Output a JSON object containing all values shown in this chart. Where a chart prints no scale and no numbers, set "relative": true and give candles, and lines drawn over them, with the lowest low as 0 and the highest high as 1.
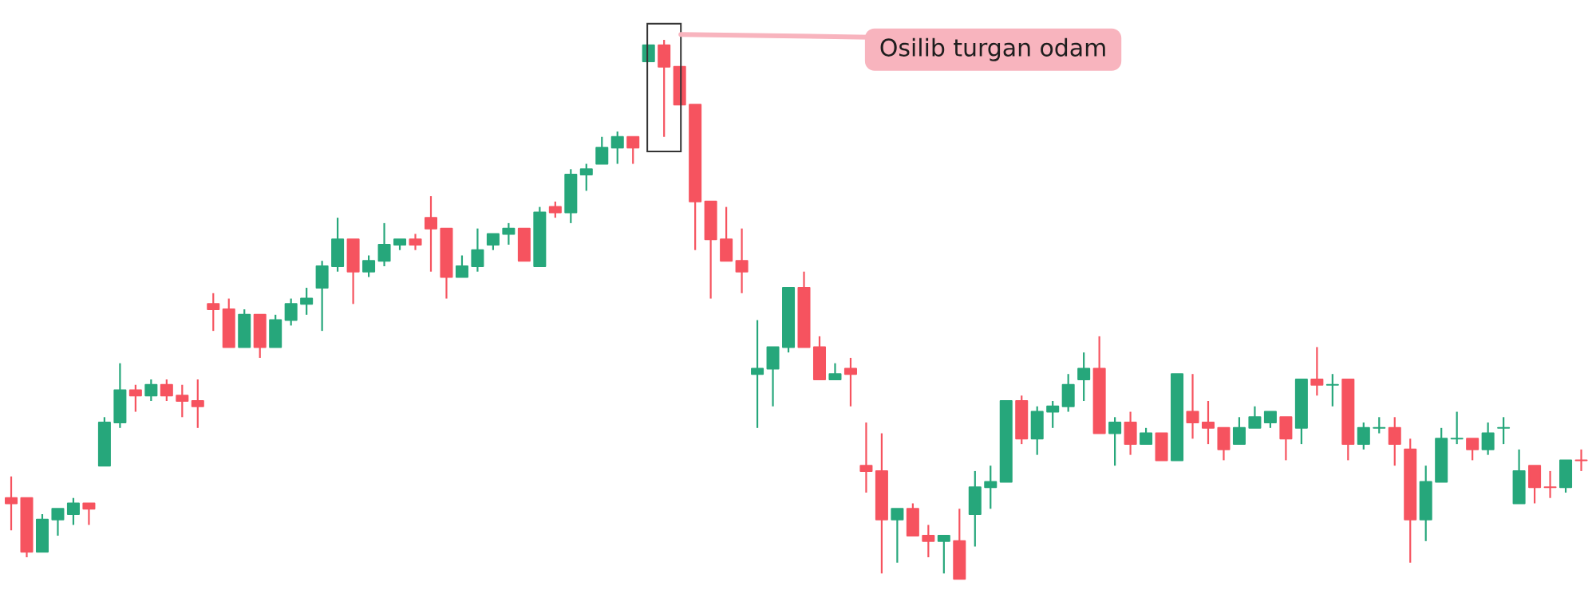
{
  "chart_data": {
    "type": "candlestick",
    "relative": true,
    "categories": [
      null,
      null,
      null,
      null,
      null,
      null,
      null,
      null,
      null,
      null,
      null,
      null,
      null,
      null,
      null,
      null,
      null,
      null,
      null,
      null,
      null,
      null,
      null,
      null,
      null,
      null,
      null,
      null,
      null,
      null,
      null,
      null,
      null,
      null,
      null,
      null,
      null,
      null,
      null,
      null,
      null,
      null,
      null,
      null,
      null,
      null,
      null,
      null,
      null,
      null,
      null,
      null,
      null,
      null,
      null,
      null,
      null,
      null,
      null,
      null,
      null,
      null,
      null,
      null,
      null,
      null,
      null,
      null,
      null,
      null,
      null,
      null,
      null,
      null,
      null,
      null,
      null,
      null,
      null,
      null,
      null,
      null,
      null,
      null,
      null,
      null,
      null,
      null,
      null,
      null,
      null,
      null,
      null,
      null,
      null,
      null,
      null,
      null,
      null,
      null,
      null,
      null
    ],
    "ohlc": [
      [
        0.15,
        0.19,
        0.09,
        0.14
      ],
      [
        0.15,
        0.15,
        0.04,
        0.05
      ],
      [
        0.05,
        0.12,
        0.05,
        0.11
      ],
      [
        0.11,
        0.13,
        0.08,
        0.13
      ],
      [
        0.12,
        0.15,
        0.1,
        0.14
      ],
      [
        0.14,
        0.14,
        0.1,
        0.13
      ],
      [
        0.21,
        0.3,
        0.21,
        0.29
      ],
      [
        0.29,
        0.4,
        0.28,
        0.35
      ],
      [
        0.35,
        0.36,
        0.31,
        0.34
      ],
      [
        0.34,
        0.37,
        0.33,
        0.36
      ],
      [
        0.36,
        0.37,
        0.33,
        0.34
      ],
      [
        0.34,
        0.36,
        0.3,
        0.33
      ],
      [
        0.33,
        0.37,
        0.28,
        0.32
      ],
      [
        0.51,
        0.53,
        0.46,
        0.5
      ],
      [
        0.5,
        0.52,
        0.43,
        0.43
      ],
      [
        0.43,
        0.5,
        0.43,
        0.49
      ],
      [
        0.49,
        0.49,
        0.41,
        0.43
      ],
      [
        0.43,
        0.49,
        0.43,
        0.48
      ],
      [
        0.48,
        0.52,
        0.47,
        0.51
      ],
      [
        0.51,
        0.54,
        0.49,
        0.52
      ],
      [
        0.54,
        0.59,
        0.46,
        0.58
      ],
      [
        0.58,
        0.67,
        0.57,
        0.63
      ],
      [
        0.63,
        0.63,
        0.51,
        0.57
      ],
      [
        0.57,
        0.6,
        0.56,
        0.59
      ],
      [
        0.59,
        0.66,
        0.58,
        0.62
      ],
      [
        0.62,
        0.63,
        0.61,
        0.63
      ],
      [
        0.63,
        0.64,
        0.61,
        0.62
      ],
      [
        0.67,
        0.71,
        0.57,
        0.65
      ],
      [
        0.65,
        0.65,
        0.52,
        0.56
      ],
      [
        0.56,
        0.6,
        0.56,
        0.58
      ],
      [
        0.58,
        0.65,
        0.57,
        0.61
      ],
      [
        0.62,
        0.64,
        0.61,
        0.64
      ],
      [
        0.64,
        0.66,
        0.62,
        0.65
      ],
      [
        0.65,
        0.65,
        0.59,
        0.59
      ],
      [
        0.58,
        0.69,
        0.58,
        0.68
      ],
      [
        0.69,
        0.7,
        0.67,
        0.68
      ],
      [
        0.68,
        0.76,
        0.66,
        0.75
      ],
      [
        0.75,
        0.77,
        0.72,
        0.76
      ],
      [
        0.77,
        0.82,
        0.77,
        0.8
      ],
      [
        0.8,
        0.83,
        0.77,
        0.82
      ],
      [
        0.82,
        0.82,
        0.77,
        0.8
      ],
      [
        0.96,
        0.99,
        0.96,
        0.99
      ],
      [
        0.99,
        1,
        0.82,
        0.95
      ],
      [
        0.95,
        0.95,
        0.88,
        0.88
      ],
      [
        0.88,
        0.88,
        0.61,
        0.7
      ],
      [
        0.7,
        0.7,
        0.52,
        0.63
      ],
      [
        0.63,
        0.69,
        0.59,
        0.59
      ],
      [
        0.59,
        0.65,
        0.53,
        0.57
      ],
      [
        0.38,
        0.48,
        0.28,
        0.39
      ],
      [
        0.39,
        0.43,
        0.32,
        0.43
      ],
      [
        0.43,
        0.54,
        0.42,
        0.54
      ],
      [
        0.54,
        0.57,
        0.43,
        0.43
      ],
      [
        0.43,
        0.45,
        0.37,
        0.37
      ],
      [
        0.37,
        0.4,
        0.37,
        0.38
      ],
      [
        0.39,
        0.41,
        0.32,
        0.38
      ],
      [
        0.21,
        0.29,
        0.16,
        0.2
      ],
      [
        0.2,
        0.27,
        0.01,
        0.11
      ],
      [
        0.11,
        0.13,
        0.03,
        0.13
      ],
      [
        0.13,
        0.14,
        0.08,
        0.08
      ],
      [
        0.08,
        0.1,
        0.04,
        0.07
      ],
      [
        0.07,
        0.08,
        0.01,
        0.08
      ],
      [
        0.07,
        0.13,
        0,
        0
      ],
      [
        0.12,
        0.2,
        0.06,
        0.17
      ],
      [
        0.17,
        0.21,
        0.13,
        0.18
      ],
      [
        0.18,
        0.33,
        0.18,
        0.33
      ],
      [
        0.33,
        0.34,
        0.25,
        0.26
      ],
      [
        0.26,
        0.32,
        0.23,
        0.31
      ],
      [
        0.31,
        0.33,
        0.28,
        0.32
      ],
      [
        0.32,
        0.38,
        0.31,
        0.36
      ],
      [
        0.37,
        0.42,
        0.33,
        0.39
      ],
      [
        0.39,
        0.45,
        0.27,
        0.27
      ],
      [
        0.27,
        0.3,
        0.21,
        0.29
      ],
      [
        0.29,
        0.31,
        0.23,
        0.25
      ],
      [
        0.25,
        0.28,
        0.25,
        0.27
      ],
      [
        0.27,
        0.27,
        0.22,
        0.22
      ],
      [
        0.22,
        0.38,
        0.22,
        0.38
      ],
      [
        0.31,
        0.38,
        0.26,
        0.29
      ],
      [
        0.29,
        0.33,
        0.25,
        0.28
      ],
      [
        0.28,
        0.28,
        0.22,
        0.24
      ],
      [
        0.25,
        0.3,
        0.25,
        0.28
      ],
      [
        0.28,
        0.32,
        0.28,
        0.3
      ],
      [
        0.29,
        0.31,
        0.28,
        0.31
      ],
      [
        0.3,
        0.3,
        0.22,
        0.26
      ],
      [
        0.28,
        0.37,
        0.25,
        0.37
      ],
      [
        0.37,
        0.43,
        0.34,
        0.36
      ],
      [
        0.36,
        0.38,
        0.32,
        0.36
      ],
      [
        0.37,
        0.37,
        0.22,
        0.25
      ],
      [
        0.25,
        0.29,
        0.24,
        0.28
      ],
      [
        0.28,
        0.3,
        0.27,
        0.28
      ],
      [
        0.28,
        0.3,
        0.21,
        0.25
      ],
      [
        0.24,
        0.26,
        0.03,
        0.11
      ],
      [
        0.11,
        0.21,
        0.07,
        0.18
      ],
      [
        0.18,
        0.28,
        0.18,
        0.26
      ],
      [
        0.26,
        0.31,
        0.25,
        0.26
      ],
      [
        0.26,
        0.26,
        0.22,
        0.24
      ],
      [
        0.24,
        0.29,
        0.23,
        0.27
      ],
      [
        0.28,
        0.3,
        0.25,
        0.28
      ],
      [
        0.14,
        0.24,
        0.14,
        0.2
      ],
      [
        0.21,
        0.21,
        0.14,
        0.17
      ],
      [
        0.17,
        0.2,
        0.15,
        0.17
      ],
      [
        0.17,
        0.22,
        0.16,
        0.22
      ],
      [
        0.22,
        0.24,
        0.2,
        0.22
      ]
    ],
    "colors": [
      "#f6535f",
      "#f6535f",
      "#26a77b",
      "#26a77b",
      "#26a77b",
      "#f6535f",
      "#26a77b",
      "#26a77b",
      "#f6535f",
      "#26a77b",
      "#f6535f",
      "#f6535f",
      "#f6535f",
      "#f6535f",
      "#f6535f",
      "#26a77b",
      "#f6535f",
      "#26a77b",
      "#26a77b",
      "#26a77b",
      "#26a77b",
      "#26a77b",
      "#f6535f",
      "#26a77b",
      "#26a77b",
      "#26a77b",
      "#f6535f",
      "#f6535f",
      "#f6535f",
      "#26a77b",
      "#26a77b",
      "#26a77b",
      "#26a77b",
      "#f6535f",
      "#26a77b",
      "#f6535f",
      "#26a77b",
      "#26a77b",
      "#26a77b",
      "#26a77b",
      "#f6535f",
      "#26a77b",
      "#f6535f",
      "#f6535f",
      "#f6535f",
      "#f6535f",
      "#f6535f",
      "#f6535f",
      "#26a77b",
      "#26a77b",
      "#26a77b",
      "#f6535f",
      "#f6535f",
      "#26a77b",
      "#f6535f",
      "#f6535f",
      "#f6535f",
      "#26a77b",
      "#f6535f",
      "#f6535f",
      "#26a77b",
      "#f6535f",
      "#26a77b",
      "#26a77b",
      "#26a77b",
      "#f6535f",
      "#26a77b",
      "#26a77b",
      "#26a77b",
      "#26a77b",
      "#f6535f",
      "#26a77b",
      "#f6535f",
      "#26a77b",
      "#f6535f",
      "#26a77b",
      "#f6535f",
      "#f6535f",
      "#f6535f",
      "#26a77b",
      "#26a77b",
      "#26a77b",
      "#f6535f",
      "#26a77b",
      "#f6535f",
      "#26a77b",
      "#f6535f",
      "#26a77b",
      "#26a77b",
      "#f6535f",
      "#f6535f",
      "#26a77b",
      "#26a77b",
      "#26a77b",
      "#f6535f",
      "#26a77b",
      "#26a77b",
      "#26a77b",
      "#f6535f",
      "#f6535f",
      "#26a77b",
      "#f6535f"
    ],
    "annotations": [
      "Osilib turgan odam"
    ]
  }
}
